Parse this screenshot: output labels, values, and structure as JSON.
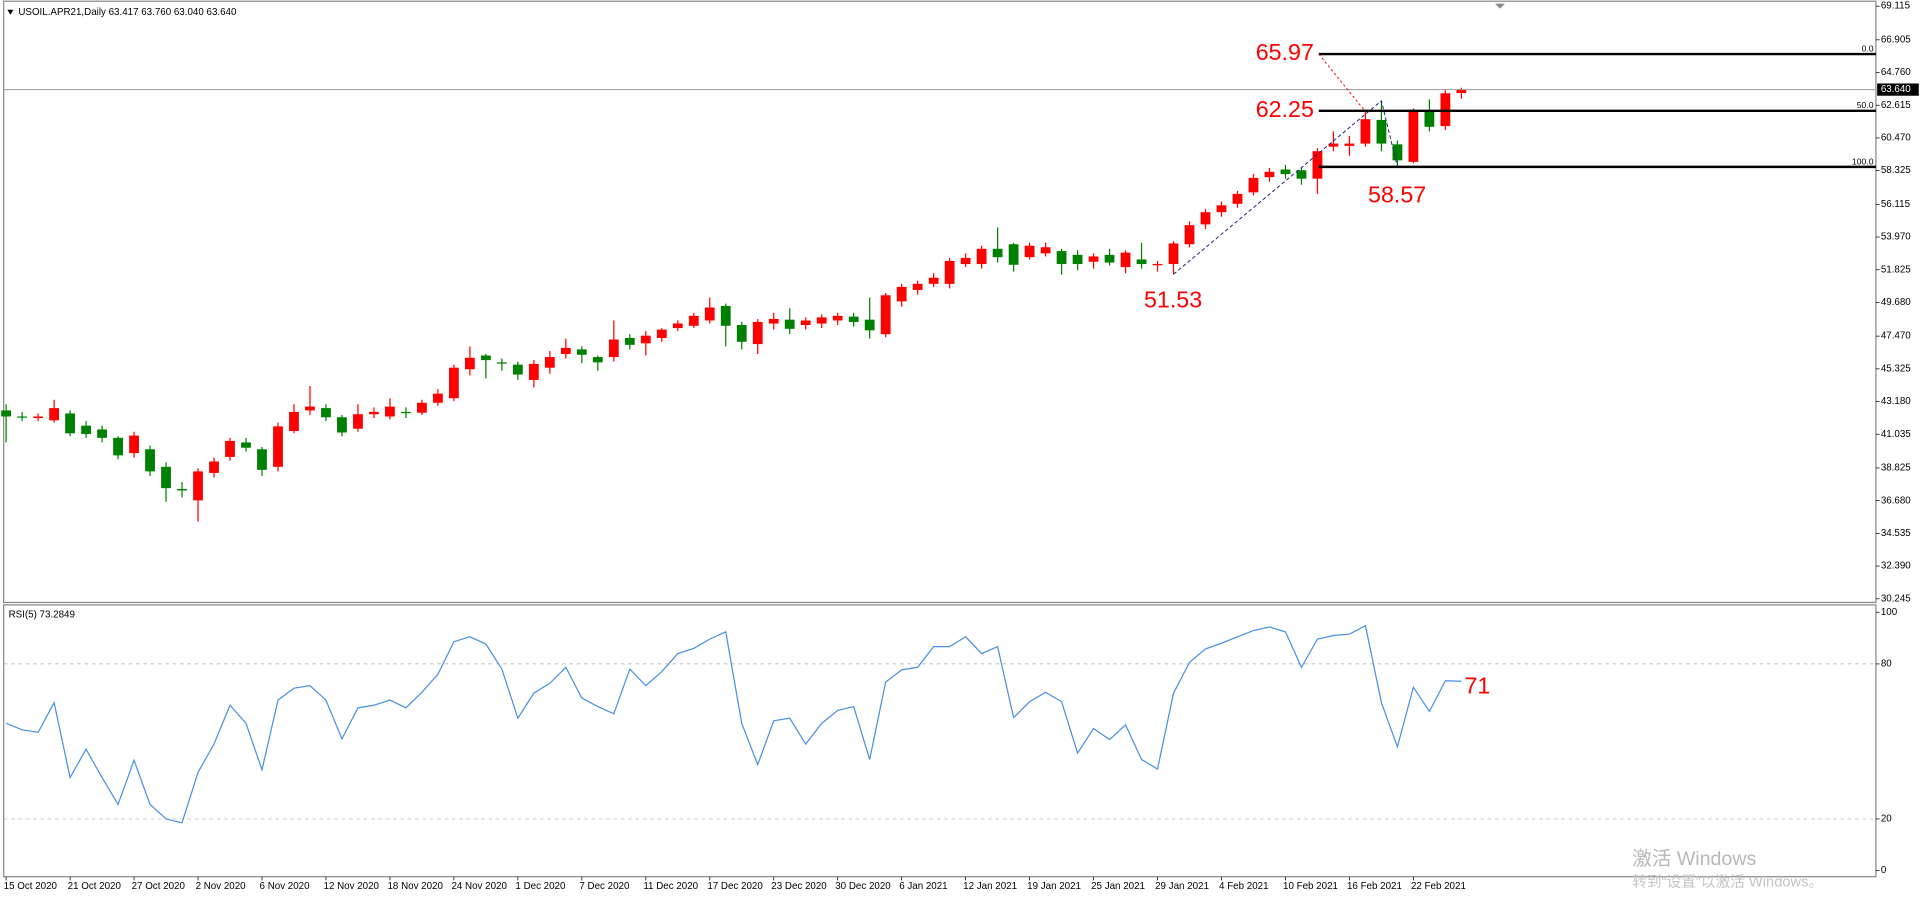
{
  "chart_data": [
    {
      "type": "candlestick",
      "title": "USOIL.APR21,Daily 63.417 63.760 63.040 63.640",
      "categories": [
        "15 Oct 2020",
        null,
        null,
        null,
        "21 Oct 2020",
        null,
        null,
        null,
        "27 Oct 2020",
        null,
        null,
        null,
        "2 Nov 2020",
        null,
        null,
        null,
        "6 Nov 2020",
        null,
        null,
        null,
        "12 Nov 2020",
        null,
        null,
        null,
        "18 Nov 2020",
        null,
        null,
        null,
        "24 Nov 2020",
        null,
        null,
        null,
        "1 Dec 2020",
        null,
        null,
        null,
        "7 Dec 2020",
        null,
        null,
        null,
        "11 Dec 2020",
        null,
        null,
        null,
        "17 Dec 2020",
        null,
        null,
        null,
        "23 Dec 2020",
        null,
        null,
        null,
        "30 Dec 2020",
        null,
        null,
        null,
        "6 Jan 2021",
        null,
        null,
        null,
        "12 Jan 2021",
        null,
        null,
        null,
        "19 Jan 2021",
        null,
        null,
        null,
        "25 Jan 2021",
        null,
        null,
        null,
        "29 Jan 2021",
        null,
        null,
        null,
        "4 Feb 2021",
        null,
        null,
        null,
        "10 Feb 2021",
        null,
        null,
        null,
        "16 Feb 2021",
        null,
        null,
        null,
        "22 Feb 2021",
        null,
        null,
        null
      ],
      "open": [
        42.6,
        42.2,
        42.1,
        41.95,
        42.4,
        41.6,
        41.35,
        40.8,
        39.8,
        40.05,
        38.9,
        37.45,
        36.7,
        38.5,
        39.55,
        40.5,
        40.05,
        38.9,
        41.25,
        42.6,
        42.75,
        42.15,
        41.4,
        42.35,
        42.2,
        42.5,
        42.45,
        43.1,
        43.4,
        45.3,
        46.2,
        45.75,
        45.6,
        44.6,
        45.4,
        46.3,
        46.6,
        46.1,
        46.1,
        47.35,
        47.0,
        47.35,
        48.0,
        48.15,
        48.5,
        49.45,
        48.2,
        46.95,
        48.3,
        48.55,
        48.2,
        48.3,
        48.5,
        48.75,
        48.55,
        47.6,
        49.75,
        50.5,
        50.9,
        50.9,
        52.2,
        52.2,
        53.2,
        53.5,
        52.65,
        52.9,
        53.05,
        52.8,
        52.35,
        52.8,
        52.0,
        52.5,
        52.15,
        52.2,
        53.5,
        54.8,
        55.6,
        56.15,
        56.9,
        57.9,
        58.4,
        58.35,
        57.8,
        59.9,
        59.95,
        60.1,
        61.65,
        60.05,
        58.9,
        62.2,
        61.25,
        63.417
      ],
      "high": [
        43.0,
        42.5,
        42.4,
        43.3,
        42.6,
        41.9,
        41.6,
        40.9,
        41.2,
        40.3,
        39.2,
        37.9,
        38.8,
        39.5,
        40.8,
        40.8,
        40.2,
        41.8,
        43.0,
        44.2,
        43.0,
        42.3,
        43.0,
        42.8,
        43.4,
        42.8,
        43.3,
        44.0,
        45.6,
        46.8,
        46.3,
        46.0,
        45.8,
        45.9,
        46.5,
        47.3,
        46.8,
        46.2,
        48.5,
        47.6,
        47.8,
        48.0,
        48.5,
        49.0,
        50.0,
        49.6,
        48.4,
        48.6,
        49.0,
        49.3,
        48.7,
        48.9,
        49.0,
        49.0,
        50.0,
        50.3,
        50.9,
        51.1,
        51.6,
        52.6,
        52.9,
        53.4,
        54.6,
        53.6,
        53.6,
        53.6,
        53.2,
        53.1,
        52.9,
        53.2,
        53.1,
        53.6,
        52.4,
        53.7,
        55.0,
        55.8,
        56.3,
        57.0,
        58.1,
        58.5,
        58.7,
        58.5,
        59.8,
        60.9,
        60.6,
        62.2,
        62.9,
        60.3,
        62.4,
        63.0,
        63.6,
        63.76
      ],
      "low": [
        40.5,
        41.9,
        41.9,
        41.8,
        40.9,
        40.8,
        40.5,
        39.4,
        39.5,
        38.3,
        36.6,
        36.9,
        35.3,
        38.2,
        39.3,
        39.9,
        38.3,
        38.6,
        41.1,
        42.3,
        41.9,
        40.9,
        41.2,
        42.1,
        42.0,
        42.1,
        42.3,
        42.9,
        43.2,
        44.9,
        44.7,
        45.2,
        44.6,
        44.1,
        45.0,
        46.0,
        45.7,
        45.2,
        45.8,
        46.6,
        46.2,
        47.1,
        47.8,
        48.0,
        48.3,
        46.8,
        46.6,
        46.3,
        47.9,
        47.6,
        47.9,
        48.0,
        48.2,
        48.1,
        47.3,
        47.4,
        49.4,
        50.2,
        50.7,
        50.6,
        52.0,
        51.9,
        52.3,
        51.7,
        52.5,
        52.7,
        51.5,
        51.8,
        51.9,
        52.1,
        51.6,
        51.9,
        51.7,
        51.53,
        53.3,
        54.5,
        55.3,
        55.9,
        56.7,
        57.6,
        57.8,
        57.4,
        56.8,
        59.6,
        59.3,
        59.9,
        59.6,
        58.57,
        58.8,
        60.9,
        61.0,
        63.04
      ],
      "close": [
        42.2,
        42.15,
        42.2,
        42.75,
        41.1,
        41.05,
        40.8,
        39.65,
        40.95,
        38.6,
        37.5,
        37.35,
        38.6,
        39.25,
        40.6,
        40.15,
        38.7,
        41.55,
        42.5,
        42.85,
        42.15,
        41.15,
        42.35,
        42.5,
        42.85,
        42.45,
        43.1,
        43.7,
        45.4,
        46.05,
        45.9,
        45.7,
        44.95,
        45.65,
        46.1,
        46.7,
        46.25,
        45.75,
        47.25,
        46.9,
        47.5,
        47.9,
        48.3,
        48.8,
        49.35,
        48.15,
        47.1,
        48.4,
        48.6,
        47.95,
        48.5,
        48.7,
        48.8,
        48.4,
        47.85,
        50.15,
        50.7,
        50.9,
        51.3,
        52.4,
        52.6,
        53.2,
        52.65,
        52.15,
        53.4,
        53.3,
        52.2,
        52.2,
        52.7,
        52.3,
        52.95,
        52.2,
        52.2,
        53.55,
        54.75,
        55.6,
        56.05,
        56.8,
        57.85,
        58.25,
        58.1,
        57.8,
        59.6,
        60.1,
        60.1,
        61.7,
        60.1,
        59.0,
        62.2,
        61.2,
        63.4,
        63.64
      ],
      "up_color": "#ff0000",
      "down_color": "#008000",
      "ylim": [
        30.245,
        69.115
      ],
      "yticks": [
        30.245,
        {
          "value": 32.39,
          "label": "32.390"
        },
        34.535,
        {
          "value": 36.68,
          "label": "36.680"
        },
        38.825,
        41.035,
        {
          "value": 43.18,
          "label": "43.180"
        },
        45.325,
        {
          "value": 47.47,
          "label": "47.470"
        },
        {
          "value": 49.68,
          "label": "49.680"
        },
        51.825,
        {
          "value": 53.97,
          "label": "53.970"
        },
        56.115,
        58.325,
        {
          "value": 60.47,
          "label": "60.470"
        },
        62.615,
        {
          "value": 64.76,
          "label": "64.760"
        },
        66.905,
        69.115
      ],
      "last_price": {
        "value": 63.64,
        "label": "63.640"
      },
      "fib_levels": [
        {
          "label": "0.0",
          "price": 65.97
        },
        {
          "label": "50.0",
          "price": 62.25
        },
        {
          "label": "100.0",
          "price": 58.57
        }
      ],
      "annotations": [
        {
          "value": 51.53
        }
      ]
    },
    {
      "type": "line",
      "title": "RSI(5) 73.2849",
      "color": "#4a90e2",
      "values": [
        57,
        54.5,
        53.5,
        65,
        36,
        47,
        36,
        25.6,
        42.7,
        25.6,
        20,
        18.5,
        38,
        49,
        64,
        57,
        39,
        66,
        70.6,
        71.6,
        66,
        51,
        63,
        64,
        66,
        63,
        69,
        76,
        88.6,
        90.5,
        87.7,
        78,
        59,
        68.7,
        72.5,
        78.7,
        66.8,
        63.5,
        60.7,
        78,
        71.6,
        77,
        84,
        86,
        89.6,
        92.4,
        57,
        41,
        58,
        59,
        49,
        57,
        62,
        63.5,
        43,
        73,
        77.7,
        78.7,
        86.7,
        86.7,
        90.5,
        84,
        86.7,
        59.2,
        65.4,
        69,
        65.4,
        45.5,
        55,
        50.7,
        56.4,
        43,
        39.3,
        68.7,
        80.6,
        85.8,
        88,
        90.5,
        92.9,
        94.3,
        92.4,
        78.7,
        89.6,
        91,
        91.5,
        94.8,
        65,
        47.9,
        71,
        61.6,
        73.5,
        73.2849
      ],
      "ylim": [
        0,
        100
      ],
      "yticks": [
        0,
        20,
        80,
        100
      ],
      "annotations": [
        {
          "value": 71
        }
      ]
    }
  ],
  "watermark": {
    "title": "激活 Windows",
    "subtitle": "转到“设置”以激活 Windows。"
  }
}
